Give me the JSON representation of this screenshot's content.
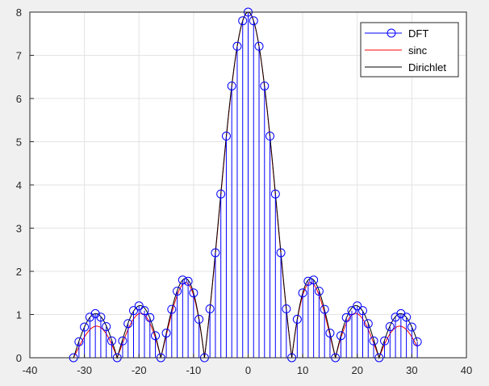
{
  "chart_data": {
    "type": "line",
    "title": "",
    "xlabel": "",
    "ylabel": "",
    "xlim": [
      -40,
      40
    ],
    "ylim": [
      0,
      8
    ],
    "xticks": [
      -40,
      -30,
      -20,
      -10,
      0,
      10,
      20,
      30,
      40
    ],
    "yticks": [
      0,
      1,
      2,
      3,
      4,
      5,
      6,
      7,
      8
    ],
    "xtick_labels": [
      "-40",
      "-30",
      "-20",
      "-10",
      "0",
      "10",
      "20",
      "30",
      "40"
    ],
    "ytick_labels": [
      "0",
      "1",
      "2",
      "3",
      "4",
      "5",
      "6",
      "7",
      "8"
    ],
    "grid": true,
    "legend_position": "top-right",
    "N": 8,
    "M": 64,
    "series": [
      {
        "name": "DFT",
        "style": "stem",
        "marker": "circle",
        "color": "#0000ff",
        "x": [
          -32,
          -31,
          -30,
          -29,
          -28,
          -27,
          -26,
          -25,
          -24,
          -23,
          -22,
          -21,
          -20,
          -19,
          -18,
          -17,
          -16,
          -15,
          -14,
          -13,
          -12,
          -11,
          -10,
          -9,
          -8,
          -7,
          -6,
          -5,
          -4,
          -3,
          -2,
          -1,
          0,
          1,
          2,
          3,
          4,
          5,
          6,
          7,
          8,
          9,
          10,
          11,
          12,
          13,
          14,
          15,
          16,
          17,
          18,
          19,
          20,
          21,
          22,
          23,
          24,
          25,
          26,
          27,
          28,
          29,
          30,
          31
        ],
        "y": [
          0,
          0.37,
          0.71,
          0.94,
          1.02,
          0.94,
          0.72,
          0.39,
          0,
          0.39,
          0.79,
          1.09,
          1.2,
          1.09,
          0.93,
          0.51,
          0,
          0.57,
          1.12,
          1.54,
          1.8,
          1.77,
          1.5,
          0.89,
          0,
          1.13,
          2.43,
          3.79,
          5.13,
          6.29,
          7.21,
          7.8,
          8.0,
          7.8,
          7.21,
          6.29,
          5.13,
          3.79,
          2.43,
          1.13,
          0,
          0.89,
          1.5,
          1.77,
          1.8,
          1.54,
          1.12,
          0.57,
          0,
          0.51,
          0.93,
          1.09,
          1.2,
          1.09,
          0.79,
          0.39,
          0,
          0.39,
          0.72,
          0.94,
          1.02,
          0.94,
          0.71,
          0.37
        ]
      },
      {
        "name": "sinc",
        "style": "line",
        "color": "#ff0000",
        "formula": "|N*sin(pi*N*k/M)/(pi*N*k/M)|"
      },
      {
        "name": "Dirichlet",
        "style": "line",
        "color": "#000000",
        "formula": "|sin(pi*N*k/M)/sin(pi*k/M)|"
      }
    ]
  },
  "colors": {
    "figure_background": "#f0f0f0",
    "axes_background": "#ffffff",
    "grid": "#e3e3e3",
    "axes_border": "#262626"
  }
}
